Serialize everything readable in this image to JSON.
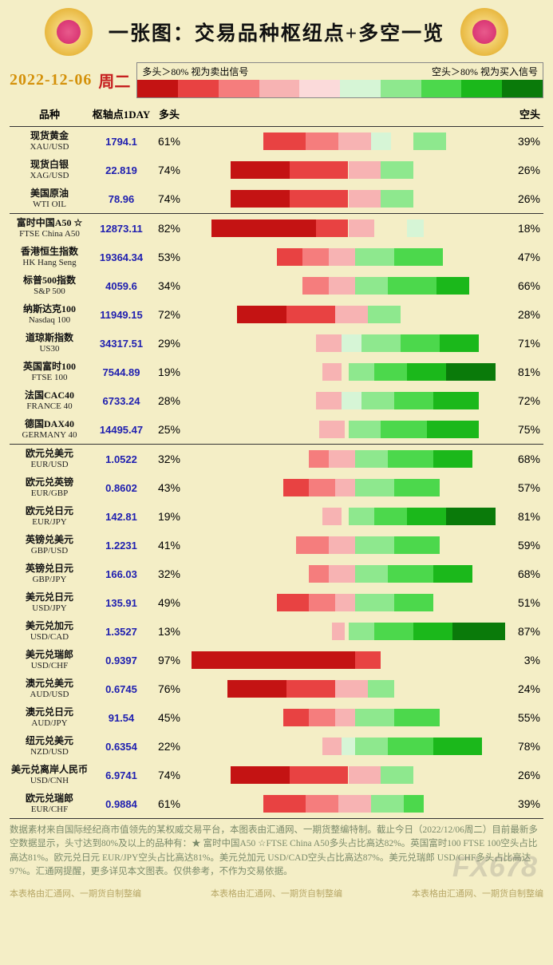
{
  "title": "一张图：交易品种枢纽点+多空一览",
  "date": "2022-12-06",
  "day": "周二",
  "legend": {
    "long_label": "多头＞80% 视为卖出信号",
    "short_label": "空头＞80% 视为买入信号",
    "colors_long": [
      "#c41313",
      "#e84242",
      "#f57d7d",
      "#f7b3b3",
      "#fbdada"
    ],
    "colors_short": [
      "#d6f5d6",
      "#8ee88e",
      "#4cd84c",
      "#1bb81b",
      "#0a7a0a"
    ]
  },
  "columns": {
    "name": "品种",
    "pivot": "枢轴点1DAY",
    "long": "多头",
    "short": "空头"
  },
  "sections": [
    {
      "rows": [
        {
          "cn": "现货黄金",
          "en": "XAU/USD",
          "pivot": "1794.1",
          "long": 61,
          "short": 39,
          "segs": [
            {
              "c": "#e84242",
              "w": 13,
              "off": 24
            },
            {
              "c": "#f57d7d",
              "w": 10,
              "off": 37
            },
            {
              "c": "#f7b3b3",
              "w": 10,
              "off": 47
            },
            {
              "c": "#d6f5d6",
              "w": 6,
              "off": 57
            },
            {
              "c": "#8ee88e",
              "w": 10,
              "off": 70
            }
          ]
        },
        {
          "cn": "现货白银",
          "en": "XAG/USD",
          "pivot": "22.819",
          "long": 74,
          "short": 26,
          "segs": [
            {
              "c": "#c41313",
              "w": 18,
              "off": 14
            },
            {
              "c": "#e84242",
              "w": 18,
              "off": 32
            },
            {
              "c": "#f7b3b3",
              "w": 10,
              "off": 50
            },
            {
              "c": "#8ee88e",
              "w": 10,
              "off": 60
            }
          ]
        },
        {
          "cn": "美国原油",
          "en": "WTI OIL",
          "pivot": "78.96",
          "long": 74,
          "short": 26,
          "segs": [
            {
              "c": "#c41313",
              "w": 18,
              "off": 14
            },
            {
              "c": "#e84242",
              "w": 18,
              "off": 32
            },
            {
              "c": "#f7b3b3",
              "w": 10,
              "off": 50
            },
            {
              "c": "#8ee88e",
              "w": 10,
              "off": 60
            }
          ]
        }
      ]
    },
    {
      "rows": [
        {
          "cn": "富时中国A50 ☆",
          "en": "FTSE China A50",
          "pivot": "12873.11",
          "long": 82,
          "short": 18,
          "star": true,
          "segs": [
            {
              "c": "#c41313",
              "w": 32,
              "off": 8
            },
            {
              "c": "#e84242",
              "w": 10,
              "off": 40
            },
            {
              "c": "#f7b3b3",
              "w": 8,
              "off": 50
            },
            {
              "c": "#d6f5d6",
              "w": 5,
              "off": 68
            }
          ]
        },
        {
          "cn": "香港恒生指数",
          "en": "HK Hang Seng",
          "pivot": "19364.34",
          "long": 53,
          "short": 47,
          "segs": [
            {
              "c": "#e84242",
              "w": 8,
              "off": 28
            },
            {
              "c": "#f57d7d",
              "w": 8,
              "off": 36
            },
            {
              "c": "#f7b3b3",
              "w": 8,
              "off": 44
            },
            {
              "c": "#8ee88e",
              "w": 12,
              "off": 52
            },
            {
              "c": "#4cd84c",
              "w": 15,
              "off": 64
            }
          ]
        },
        {
          "cn": "标普500指数",
          "en": "S&P 500",
          "pivot": "4059.6",
          "long": 34,
          "short": 66,
          "segs": [
            {
              "c": "#f57d7d",
              "w": 8,
              "off": 36
            },
            {
              "c": "#f7b3b3",
              "w": 8,
              "off": 44
            },
            {
              "c": "#8ee88e",
              "w": 10,
              "off": 52
            },
            {
              "c": "#4cd84c",
              "w": 15,
              "off": 62
            },
            {
              "c": "#1bb81b",
              "w": 10,
              "off": 77
            }
          ]
        },
        {
          "cn": "纳斯达克100",
          "en": "Nasdaq 100",
          "pivot": "11949.15",
          "long": 72,
          "short": 28,
          "segs": [
            {
              "c": "#c41313",
              "w": 15,
              "off": 16
            },
            {
              "c": "#e84242",
              "w": 15,
              "off": 31
            },
            {
              "c": "#f7b3b3",
              "w": 10,
              "off": 46
            },
            {
              "c": "#8ee88e",
              "w": 10,
              "off": 56
            }
          ]
        },
        {
          "cn": "道琼斯指数",
          "en": "US30",
          "pivot": "34317.51",
          "long": 29,
          "short": 71,
          "segs": [
            {
              "c": "#f7b3b3",
              "w": 8,
              "off": 40
            },
            {
              "c": "#d6f5d6",
              "w": 6,
              "off": 48
            },
            {
              "c": "#8ee88e",
              "w": 12,
              "off": 54
            },
            {
              "c": "#4cd84c",
              "w": 12,
              "off": 66
            },
            {
              "c": "#1bb81b",
              "w": 12,
              "off": 78
            }
          ]
        },
        {
          "cn": "英国富时100",
          "en": "FTSE 100",
          "pivot": "7544.89",
          "long": 19,
          "short": 81,
          "segs": [
            {
              "c": "#f7b3b3",
              "w": 6,
              "off": 42
            },
            {
              "c": "#8ee88e",
              "w": 8,
              "off": 50
            },
            {
              "c": "#4cd84c",
              "w": 10,
              "off": 58
            },
            {
              "c": "#1bb81b",
              "w": 12,
              "off": 68
            },
            {
              "c": "#0a7a0a",
              "w": 15,
              "off": 80
            }
          ]
        },
        {
          "cn": "法国CAC40",
          "en": "FRANCE 40",
          "pivot": "6733.24",
          "long": 28,
          "short": 72,
          "segs": [
            {
              "c": "#f7b3b3",
              "w": 8,
              "off": 40
            },
            {
              "c": "#d6f5d6",
              "w": 6,
              "off": 48
            },
            {
              "c": "#8ee88e",
              "w": 10,
              "off": 54
            },
            {
              "c": "#4cd84c",
              "w": 12,
              "off": 64
            },
            {
              "c": "#1bb81b",
              "w": 14,
              "off": 76
            }
          ]
        },
        {
          "cn": "德国DAX40",
          "en": "GERMANY 40",
          "pivot": "14495.47",
          "long": 25,
          "short": 75,
          "segs": [
            {
              "c": "#f7b3b3",
              "w": 8,
              "off": 41
            },
            {
              "c": "#8ee88e",
              "w": 10,
              "off": 50
            },
            {
              "c": "#4cd84c",
              "w": 14,
              "off": 60
            },
            {
              "c": "#1bb81b",
              "w": 16,
              "off": 74
            }
          ]
        }
      ]
    },
    {
      "rows": [
        {
          "cn": "欧元兑美元",
          "en": "EUR/USD",
          "pivot": "1.0522",
          "long": 32,
          "short": 68,
          "segs": [
            {
              "c": "#f57d7d",
              "w": 6,
              "off": 38
            },
            {
              "c": "#f7b3b3",
              "w": 8,
              "off": 44
            },
            {
              "c": "#8ee88e",
              "w": 10,
              "off": 52
            },
            {
              "c": "#4cd84c",
              "w": 14,
              "off": 62
            },
            {
              "c": "#1bb81b",
              "w": 12,
              "off": 76
            }
          ]
        },
        {
          "cn": "欧元兑英镑",
          "en": "EUR/GBP",
          "pivot": "0.8602",
          "long": 43,
          "short": 57,
          "segs": [
            {
              "c": "#e84242",
              "w": 8,
              "off": 30
            },
            {
              "c": "#f57d7d",
              "w": 8,
              "off": 38
            },
            {
              "c": "#f7b3b3",
              "w": 6,
              "off": 46
            },
            {
              "c": "#8ee88e",
              "w": 12,
              "off": 52
            },
            {
              "c": "#4cd84c",
              "w": 14,
              "off": 64
            }
          ]
        },
        {
          "cn": "欧元兑日元",
          "en": "EUR/JPY",
          "pivot": "142.81",
          "long": 19,
          "short": 81,
          "segs": [
            {
              "c": "#f7b3b3",
              "w": 6,
              "off": 42
            },
            {
              "c": "#8ee88e",
              "w": 8,
              "off": 50
            },
            {
              "c": "#4cd84c",
              "w": 10,
              "off": 58
            },
            {
              "c": "#1bb81b",
              "w": 12,
              "off": 68
            },
            {
              "c": "#0a7a0a",
              "w": 15,
              "off": 80
            }
          ]
        },
        {
          "cn": "英镑兑美元",
          "en": "GBP/USD",
          "pivot": "1.2231",
          "long": 41,
          "short": 59,
          "segs": [
            {
              "c": "#f57d7d",
              "w": 10,
              "off": 34
            },
            {
              "c": "#f7b3b3",
              "w": 8,
              "off": 44
            },
            {
              "c": "#8ee88e",
              "w": 12,
              "off": 52
            },
            {
              "c": "#4cd84c",
              "w": 14,
              "off": 64
            }
          ]
        },
        {
          "cn": "英镑兑日元",
          "en": "GBP/JPY",
          "pivot": "166.03",
          "long": 32,
          "short": 68,
          "segs": [
            {
              "c": "#f57d7d",
              "w": 6,
              "off": 38
            },
            {
              "c": "#f7b3b3",
              "w": 8,
              "off": 44
            },
            {
              "c": "#8ee88e",
              "w": 10,
              "off": 52
            },
            {
              "c": "#4cd84c",
              "w": 14,
              "off": 62
            },
            {
              "c": "#1bb81b",
              "w": 12,
              "off": 76
            }
          ]
        },
        {
          "cn": "美元兑日元",
          "en": "USD/JPY",
          "pivot": "135.91",
          "long": 49,
          "short": 51,
          "segs": [
            {
              "c": "#e84242",
              "w": 10,
              "off": 28
            },
            {
              "c": "#f57d7d",
              "w": 8,
              "off": 38
            },
            {
              "c": "#f7b3b3",
              "w": 6,
              "off": 46
            },
            {
              "c": "#8ee88e",
              "w": 12,
              "off": 52
            },
            {
              "c": "#4cd84c",
              "w": 12,
              "off": 64
            }
          ]
        },
        {
          "cn": "美元兑加元",
          "en": "USD/CAD",
          "pivot": "1.3527",
          "long": 13,
          "short": 87,
          "segs": [
            {
              "c": "#f7b3b3",
              "w": 4,
              "off": 45
            },
            {
              "c": "#8ee88e",
              "w": 8,
              "off": 50
            },
            {
              "c": "#4cd84c",
              "w": 12,
              "off": 58
            },
            {
              "c": "#1bb81b",
              "w": 12,
              "off": 70
            },
            {
              "c": "#0a7a0a",
              "w": 16,
              "off": 82
            }
          ]
        },
        {
          "cn": "美元兑瑞郎",
          "en": "USD/CHF",
          "pivot": "0.9397",
          "long": 97,
          "short": 3,
          "segs": [
            {
              "c": "#c41313",
              "w": 50,
              "off": 2
            },
            {
              "c": "#e84242",
              "w": 8,
              "off": 52
            }
          ]
        },
        {
          "cn": "澳元兑美元",
          "en": "AUD/USD",
          "pivot": "0.6745",
          "long": 76,
          "short": 24,
          "segs": [
            {
              "c": "#c41313",
              "w": 18,
              "off": 13
            },
            {
              "c": "#e84242",
              "w": 15,
              "off": 31
            },
            {
              "c": "#f7b3b3",
              "w": 10,
              "off": 46
            },
            {
              "c": "#8ee88e",
              "w": 8,
              "off": 56
            }
          ]
        },
        {
          "cn": "澳元兑日元",
          "en": "AUD/JPY",
          "pivot": "91.54",
          "long": 45,
          "short": 55,
          "segs": [
            {
              "c": "#e84242",
              "w": 8,
              "off": 30
            },
            {
              "c": "#f57d7d",
              "w": 8,
              "off": 38
            },
            {
              "c": "#f7b3b3",
              "w": 6,
              "off": 46
            },
            {
              "c": "#8ee88e",
              "w": 12,
              "off": 52
            },
            {
              "c": "#4cd84c",
              "w": 14,
              "off": 64
            }
          ]
        },
        {
          "cn": "纽元兑美元",
          "en": "NZD/USD",
          "pivot": "0.6354",
          "long": 22,
          "short": 78,
          "segs": [
            {
              "c": "#f7b3b3",
              "w": 6,
              "off": 42
            },
            {
              "c": "#d6f5d6",
              "w": 4,
              "off": 48
            },
            {
              "c": "#8ee88e",
              "w": 10,
              "off": 52
            },
            {
              "c": "#4cd84c",
              "w": 14,
              "off": 62
            },
            {
              "c": "#1bb81b",
              "w": 15,
              "off": 76
            }
          ]
        },
        {
          "cn": "美元兑离岸人民币",
          "en": "USD/CNH",
          "pivot": "6.9741",
          "long": 74,
          "short": 26,
          "segs": [
            {
              "c": "#c41313",
              "w": 18,
              "off": 14
            },
            {
              "c": "#e84242",
              "w": 18,
              "off": 32
            },
            {
              "c": "#f7b3b3",
              "w": 10,
              "off": 50
            },
            {
              "c": "#8ee88e",
              "w": 10,
              "off": 60
            }
          ]
        },
        {
          "cn": "欧元兑瑞郎",
          "en": "EUR/CHF",
          "pivot": "0.9884",
          "long": 61,
          "short": 39,
          "segs": [
            {
              "c": "#e84242",
              "w": 13,
              "off": 24
            },
            {
              "c": "#f57d7d",
              "w": 10,
              "off": 37
            },
            {
              "c": "#f7b3b3",
              "w": 10,
              "off": 47
            },
            {
              "c": "#8ee88e",
              "w": 10,
              "off": 57
            },
            {
              "c": "#4cd84c",
              "w": 6,
              "off": 67
            }
          ]
        }
      ]
    }
  ],
  "footer": "数据素材来自国际经纪商市值领先的某权威交易平台，本图表由汇通网、一期货整编特制。截止今日（2022/12/06周二）目前最新多空数据显示，头寸达到80%及以上的品种有：★ 富时中国A50 ☆FTSE China A50多头占比高达82%。英国富时100 FTSE 100空头占比高达81%。欧元兑日元 EUR/JPY空头占比高达81%。美元兑加元 USD/CAD空头占比高达87%。美元兑瑞郎 USD/CHF多头占比高达97%。汇通网提醒，更多详见本文图表。仅供参考，不作为交易依据。",
  "credits": "本表格由汇通网、一期货自制整编",
  "watermark": "FX678"
}
